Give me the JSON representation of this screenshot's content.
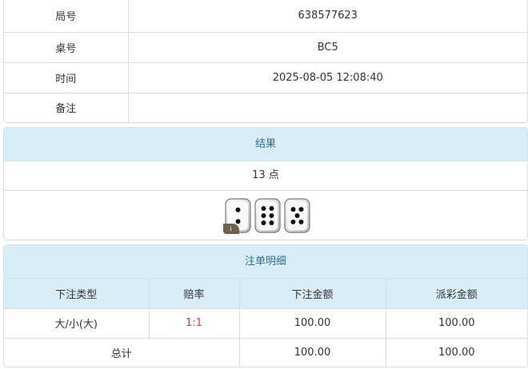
{
  "info": {
    "rows": [
      {
        "label": "局号",
        "value": "638577623"
      },
      {
        "label": "桌号",
        "value": "BC5"
      },
      {
        "label": "时间",
        "value": "2025-08-05 12:08:40"
      },
      {
        "label": "备注",
        "value": ""
      }
    ]
  },
  "result": {
    "title": "结果",
    "points": "13 点",
    "dice": [
      2,
      6,
      5
    ],
    "badge_icon": "info-icon",
    "badge_text": "i"
  },
  "bets": {
    "title": "注单明细",
    "columns": [
      "下注类型",
      "赔率",
      "下注金额",
      "派彩金额"
    ],
    "rows": [
      {
        "type": "大/小(大)",
        "odds": "1:1",
        "bet": "100.00",
        "payout": "100.00"
      }
    ],
    "total": {
      "label": "总计",
      "bet": "100.00",
      "payout": "100.00"
    },
    "odds_color": "#e4393c",
    "header_color": "#d9edf7"
  }
}
